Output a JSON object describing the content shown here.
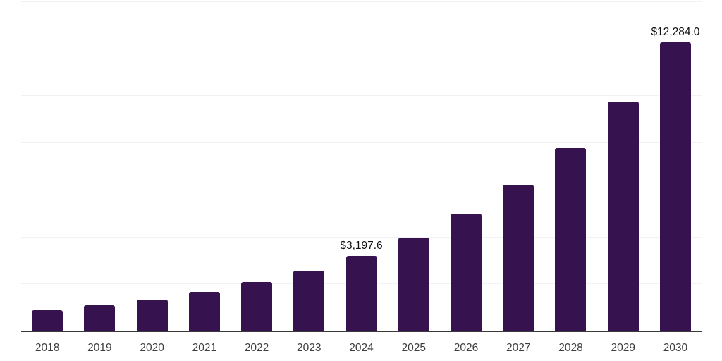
{
  "chart_data": {
    "type": "bar",
    "categories": [
      "2018",
      "2019",
      "2020",
      "2021",
      "2022",
      "2023",
      "2024",
      "2025",
      "2026",
      "2027",
      "2028",
      "2029",
      "2030"
    ],
    "values": [
      890,
      1115,
      1360,
      1680,
      2085,
      2570,
      3197.6,
      4000,
      4995,
      6230,
      7800,
      9770,
      12284
    ],
    "data_labels": [
      "",
      "",
      "",
      "",
      "",
      "",
      "$3,197.6",
      "",
      "",
      "",
      "",
      "",
      "$12,284.0"
    ],
    "xlabel": "",
    "ylabel": "",
    "ylim": [
      0,
      14000
    ],
    "gridline_interval": 2000,
    "grid": "horizontal",
    "legend": "none",
    "bar_color": "#36124f",
    "gridline_color": "#f2f2f4",
    "axis_color": "#3a3a3a",
    "data_label_color": "#111111",
    "tick_label_color": "#3d3d3d"
  }
}
